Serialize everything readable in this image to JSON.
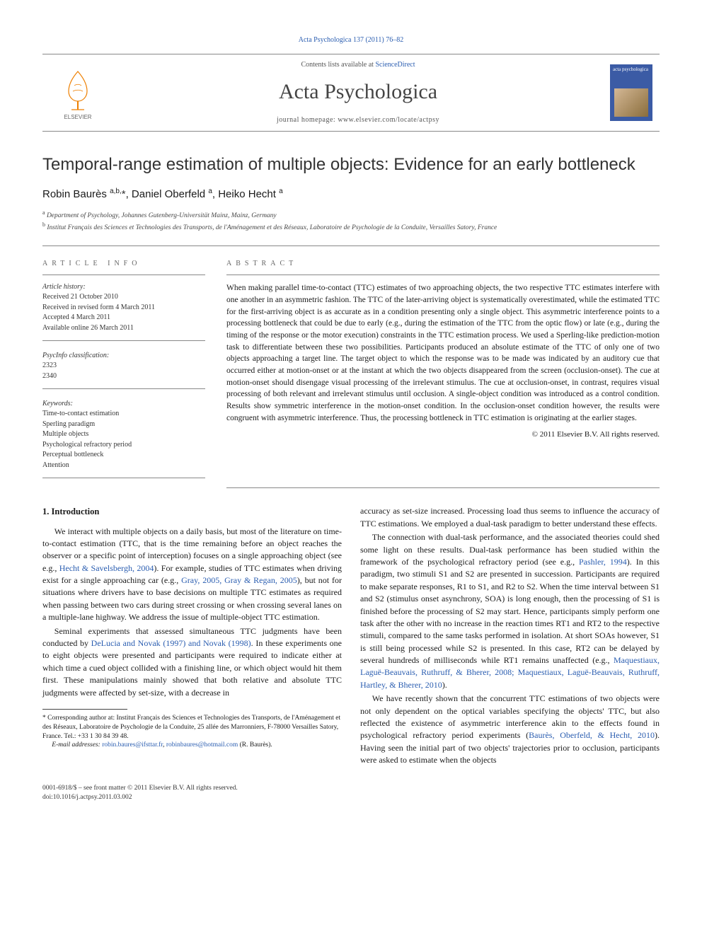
{
  "top_citation": "Acta Psychologica 137 (2011) 76–82",
  "masthead": {
    "avail_prefix": "Contents lists available at ",
    "avail_link": "ScienceDirect",
    "journal_name": "Acta Psychologica",
    "homepage_label": "journal homepage: www.elsevier.com/locate/actpsy",
    "cover_text": "acta\npsychologica"
  },
  "title": "Temporal-range estimation of multiple objects: Evidence for an early bottleneck",
  "authors_html": "Robin Baurès <sup>a,b,</sup><span class='corr-star'>*</span>, Daniel Oberfeld <sup>a</sup>, Heiko Hecht <sup>a</sup>",
  "affiliations": [
    {
      "sup": "a",
      "text": "Department of Psychology, Johannes Gutenberg-Universität Mainz, Mainz, Germany"
    },
    {
      "sup": "b",
      "text": "Institut Français des Sciences et Technologies des Transports, de l'Aménagement et des Réseaux, Laboratoire de Psychologie de la Conduite, Versailles Satory, France"
    }
  ],
  "article_info": {
    "heading": "ARTICLE INFO",
    "history_label": "Article history:",
    "history": [
      "Received 21 October 2010",
      "Received in revised form 4 March 2011",
      "Accepted 4 March 2011",
      "Available online 26 March 2011"
    ],
    "psycinfo_label": "PsycInfo classification:",
    "psycinfo": [
      "2323",
      "2340"
    ],
    "keywords_label": "Keywords:",
    "keywords": [
      "Time-to-contact estimation",
      "Sperling paradigm",
      "Multiple objects",
      "Psychological refractory period",
      "Perceptual bottleneck",
      "Attention"
    ]
  },
  "abstract": {
    "heading": "ABSTRACT",
    "text": "When making parallel time-to-contact (TTC) estimates of two approaching objects, the two respective TTC estimates interfere with one another in an asymmetric fashion. The TTC of the later-arriving object is systematically overestimated, while the estimated TTC for the first-arriving object is as accurate as in a condition presenting only a single object. This asymmetric interference points to a processing bottleneck that could be due to early (e.g., during the estimation of the TTC from the optic flow) or late (e.g., during the timing of the response or the motor execution) constraints in the TTC estimation process. We used a Sperling-like prediction-motion task to differentiate between these two possibilities. Participants produced an absolute estimate of the TTC of only one of two objects approaching a target line. The target object to which the response was to be made was indicated by an auditory cue that occurred either at motion-onset or at the instant at which the two objects disappeared from the screen (occlusion-onset). The cue at motion-onset should disengage visual processing of the irrelevant stimulus. The cue at occlusion-onset, in contrast, requires visual processing of both relevant and irrelevant stimulus until occlusion. A single-object condition was introduced as a control condition. Results show symmetric interference in the motion-onset condition. In the occlusion-onset condition however, the results were congruent with asymmetric interference. Thus, the processing bottleneck in TTC estimation is originating at the earlier stages.",
    "copyright": "© 2011 Elsevier B.V. All rights reserved."
  },
  "body": {
    "section_heading": "1. Introduction",
    "p1": "We interact with multiple objects on a daily basis, but most of the literature on time-to-contact estimation (TTC, that is the time remaining before an object reaches the observer or a specific point of interception) focuses on a single approaching object (see e.g., Hecht & Savelsbergh, 2004). For example, studies of TTC estimates when driving exist for a single approaching car (e.g., Gray, 2005, Gray & Regan, 2005), but not for situations where drivers have to base decisions on multiple TTC estimates as required when passing between two cars during street crossing or when crossing several lanes on a multiple-lane highway. We address the issue of multiple-object TTC estimation.",
    "p2": "Seminal experiments that assessed simultaneous TTC judgments have been conducted by DeLucia and Novak (1997) and Novak (1998). In these experiments one to eight objects were presented and participants were required to indicate either at which time a cued object collided with a finishing line, or which object would hit them first. These manipulations mainly showed that both relative and absolute TTC judgments were affected by set-size, with a decrease in",
    "p3": "accuracy as set-size increased. Processing load thus seems to influence the accuracy of TTC estimations. We employed a dual-task paradigm to better understand these effects.",
    "p4": "The connection with dual-task performance, and the associated theories could shed some light on these results. Dual-task performance has been studied within the framework of the psychological refractory period (see e.g., Pashler, 1994). In this paradigm, two stimuli S1 and S2 are presented in succession. Participants are required to make separate responses, R1 to S1, and R2 to S2. When the time interval between S1 and S2 (stimulus onset asynchrony, SOA) is long enough, then the processing of S1 is finished before the processing of S2 may start. Hence, participants simply perform one task after the other with no increase in the reaction times RT1 and RT2 to the respective stimuli, compared to the same tasks performed in isolation. At short SOAs however, S1 is still being processed while S2 is presented. In this case, RT2 can be delayed by several hundreds of milliseconds while RT1 remains unaffected (e.g., Maquestiaux, Laguë-Beauvais, Ruthruff, & Bherer, 2008; Maquestiaux, Laguë-Beauvais, Ruthruff, Hartley, & Bherer, 2010).",
    "p5": "We have recently shown that the concurrent TTC estimations of two objects were not only dependent on the optical variables specifying the objects' TTC, but also reflected the existence of asymmetric interference akin to the effects found in psychological refractory period experiments (Baurès, Oberfeld, & Hecht, 2010). Having seen the initial part of two objects' trajectories prior to occlusion, participants were asked to estimate when the objects"
  },
  "footnote": {
    "corr": "* Corresponding author at: Institut Français des Sciences et Technologies des Transports, de l'Aménagement et des Réseaux, Laboratoire de Psychologie de la Conduite, 25 allée des Marronniers, F-78000 Versailles Satory, France. Tel.: +33 1 30 84 39 48.",
    "email_label": "E-mail addresses:",
    "email1": "robin.baures@ifsttar.fr",
    "email2": "robinbaures@hotmail.com",
    "email_suffix": "(R. Baurès)."
  },
  "footer": {
    "line1": "0001-6918/$ – see front matter © 2011 Elsevier B.V. All rights reserved.",
    "line2": "doi:10.1016/j.actpsy.2011.03.002"
  },
  "colors": {
    "link": "#2a5db0",
    "rule": "#888888",
    "elsevier_orange": "#ee7f00",
    "cover_blue": "#3b5ba5"
  }
}
